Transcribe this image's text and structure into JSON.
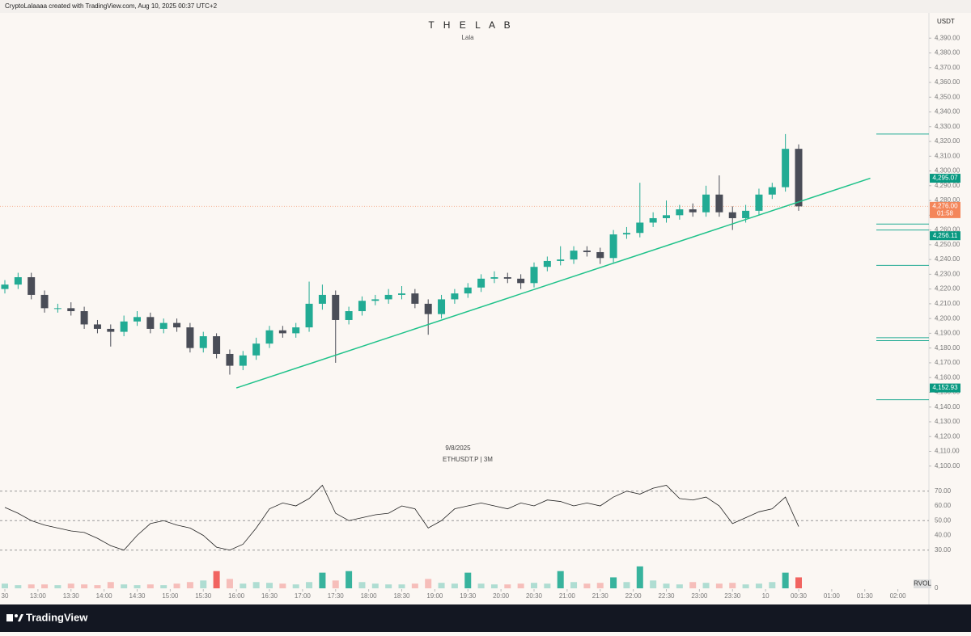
{
  "header": "CryptoLalaaaa created with TradingView.com, Aug 10, 2025 00:37 UTC+2",
  "footer": "TradingView",
  "chart_data": {
    "type": "candlestick",
    "title": "T H E  L A B",
    "subtitle": "Lala",
    "date": "9/8/2025",
    "symbol": "ETHUSDT.P | 3M",
    "currency": "USDT",
    "x": [
      "12:30",
      "12:42",
      "12:54",
      "13:06",
      "13:18",
      "13:30",
      "13:42",
      "13:54",
      "14:06",
      "14:18",
      "14:30",
      "14:42",
      "14:54",
      "15:06",
      "15:18",
      "15:30",
      "15:42",
      "15:54",
      "16:06",
      "16:18",
      "16:30",
      "16:42",
      "16:54",
      "17:06",
      "17:18",
      "17:30",
      "17:42",
      "17:54",
      "18:06",
      "18:18",
      "18:30",
      "18:42",
      "18:54",
      "19:06",
      "19:18",
      "19:30",
      "19:42",
      "19:54",
      "20:06",
      "20:18",
      "20:30",
      "20:42",
      "20:54",
      "21:06",
      "21:18",
      "21:30",
      "21:42",
      "21:54",
      "22:06",
      "22:18",
      "22:30",
      "22:42",
      "22:54",
      "23:06",
      "23:18",
      "23:30",
      "23:42",
      "23:54",
      "00:06",
      "00:18",
      "00:30"
    ],
    "open": [
      4220,
      4223,
      4228,
      4216,
      4207,
      4207,
      4205,
      4196,
      4193,
      4191,
      4198,
      4201,
      4193,
      4197,
      4194,
      4180,
      4188,
      4176,
      4168,
      4175,
      4183,
      4192,
      4190,
      4194,
      4210,
      4216,
      4199,
      4205,
      4212,
      4213,
      4216,
      4217,
      4210,
      4203,
      4213,
      4217,
      4221,
      4227,
      4228,
      4227,
      4224,
      4235,
      4239,
      4240,
      4246,
      4245,
      4241,
      4257,
      4258,
      4265,
      4268,
      4270,
      4274,
      4272,
      4284,
      4272,
      4268,
      4273,
      4284,
      4289,
      4315
    ],
    "high": [
      4226,
      4231,
      4231,
      4219,
      4210,
      4211,
      4208,
      4199,
      4196,
      4202,
      4205,
      4204,
      4200,
      4200,
      4197,
      4191,
      4190,
      4179,
      4178,
      4187,
      4195,
      4195,
      4197,
      4225,
      4223,
      4219,
      4208,
      4215,
      4216,
      4220,
      4222,
      4220,
      4213,
      4216,
      4220,
      4224,
      4230,
      4232,
      4231,
      4230,
      4238,
      4242,
      4249,
      4249,
      4249,
      4248,
      4260,
      4262,
      4292,
      4272,
      4280,
      4277,
      4278,
      4290,
      4297,
      4276,
      4277,
      4288,
      4292,
      4325,
      4318
    ],
    "low": [
      4217,
      4220,
      4213,
      4204,
      4204,
      4202,
      4193,
      4190,
      4181,
      4188,
      4195,
      4190,
      4190,
      4191,
      4177,
      4177,
      4173,
      4162,
      4165,
      4172,
      4180,
      4187,
      4187,
      4191,
      4206,
      4170,
      4196,
      4202,
      4209,
      4210,
      4213,
      4207,
      4189,
      4200,
      4210,
      4214,
      4218,
      4224,
      4224,
      4220,
      4221,
      4232,
      4236,
      4237,
      4242,
      4237,
      4238,
      4254,
      4255,
      4262,
      4265,
      4267,
      4269,
      4269,
      4269,
      4260,
      4265,
      4270,
      4281,
      4286,
      4273
    ],
    "close": [
      4223,
      4228,
      4216,
      4207,
      4207,
      4205,
      4196,
      4193,
      4191,
      4198,
      4201,
      4193,
      4197,
      4194,
      4180,
      4188,
      4176,
      4168,
      4175,
      4183,
      4192,
      4190,
      4194,
      4210,
      4216,
      4199,
      4205,
      4212,
      4213,
      4216,
      4217,
      4210,
      4203,
      4213,
      4217,
      4221,
      4227,
      4228,
      4227,
      4224,
      4235,
      4239,
      4240,
      4246,
      4245,
      4241,
      4257,
      4258,
      4265,
      4268,
      4270,
      4274,
      4272,
      4284,
      4272,
      4268,
      4273,
      4284,
      4289,
      4315,
      4276
    ],
    "up_color": "#22ab94",
    "down_color": "#4a4d57",
    "ylim": [
      4090,
      4406
    ],
    "yticks": [
      {
        "value": 4100,
        "label": "4,100.00"
      },
      {
        "value": 4110,
        "label": "4,110.00"
      },
      {
        "value": 4120,
        "label": "4,120.00"
      },
      {
        "value": 4130,
        "label": "4,130.00"
      },
      {
        "value": 4140,
        "label": "4,140.00"
      },
      {
        "value": 4150,
        "label": "4,150.00"
      },
      {
        "value": 4160,
        "label": "4,160.00"
      },
      {
        "value": 4170,
        "label": "4,170.00"
      },
      {
        "value": 4180,
        "label": "4,180.00"
      },
      {
        "value": 4190,
        "label": "4,190.00"
      },
      {
        "value": 4200,
        "label": "4,200.00"
      },
      {
        "value": 4210,
        "label": "4,210.00"
      },
      {
        "value": 4220,
        "label": "4,220.00"
      },
      {
        "value": 4230,
        "label": "4,230.00"
      },
      {
        "value": 4240,
        "label": "4,240.00"
      },
      {
        "value": 4250,
        "label": "4,250.00"
      },
      {
        "value": 4260,
        "label": "4,260.00"
      },
      {
        "value": 4270,
        "label": "4,270.00"
      },
      {
        "value": 4280,
        "label": "4,280.00"
      },
      {
        "value": 4290,
        "label": "4,290.00"
      },
      {
        "value": 4300,
        "label": "4,300.00"
      },
      {
        "value": 4310,
        "label": "4,310.00"
      },
      {
        "value": 4320,
        "label": "4,320.00"
      },
      {
        "value": 4330,
        "label": "4,330.00"
      },
      {
        "value": 4340,
        "label": "4,340.00"
      },
      {
        "value": 4350,
        "label": "4,350.00"
      },
      {
        "value": 4360,
        "label": "4,360.00"
      },
      {
        "value": 4370,
        "label": "4,370.00"
      },
      {
        "value": 4380,
        "label": "4,380.00"
      },
      {
        "value": 4390,
        "label": "4,390.00"
      }
    ],
    "xticks": [
      {
        "value": "12:30",
        "label": "30"
      },
      "13:00",
      "13:30",
      "14:00",
      "14:30",
      "15:00",
      "15:30",
      "16:00",
      "16:30",
      "17:00",
      "17:30",
      "18:00",
      "18:30",
      "19:00",
      "19:30",
      "20:00",
      "20:30",
      "21:00",
      "21:30",
      "22:00",
      "22:30",
      "23:00",
      "23:30",
      {
        "value": "00:00",
        "label": "10"
      },
      "00:30",
      "01:00",
      "01:30",
      "02:00"
    ],
    "trendline": {
      "x": [
        "16:00",
        "01:35"
      ],
      "y": [
        4152.93,
        4295.07
      ],
      "color": "#1fc28a"
    },
    "levels": {
      "values": [
        4325,
        4264,
        4260,
        4236,
        4187,
        4185,
        4145
      ],
      "color": "#22ab94"
    },
    "current_price": {
      "value": 4276,
      "label": "4,276.00",
      "countdown": "01:58",
      "color": "#f4865a"
    },
    "price_labels": [
      {
        "value": 4295.07,
        "label": "4,295.07"
      },
      {
        "value": 4256.11,
        "label": "4,256.11"
      },
      {
        "value": 4152.93,
        "label": "4,152.93"
      }
    ],
    "price_label_color": "#089981",
    "rsi": {
      "values": [
        59,
        55,
        50,
        47,
        45,
        43,
        42,
        38,
        33,
        30,
        40,
        48,
        50,
        47,
        45,
        40,
        32,
        30,
        34,
        45,
        58,
        62,
        60,
        65,
        74,
        55,
        50,
        52,
        54,
        55,
        60,
        58,
        45,
        50,
        58,
        60,
        62,
        60,
        58,
        62,
        60,
        64,
        63,
        60,
        62,
        60,
        66,
        70,
        68,
        72,
        74,
        65,
        64,
        66,
        60,
        48,
        52,
        56,
        58,
        66,
        46
      ],
      "color": "#222222",
      "ylim": [
        20,
        77
      ],
      "yticks": [
        {
          "value": 30,
          "label": "30.00"
        },
        {
          "value": 40,
          "label": "40.00"
        },
        {
          "value": 50,
          "label": "50.00"
        },
        {
          "value": 60,
          "label": "60.00"
        },
        {
          "value": 70,
          "label": "70.00"
        }
      ],
      "bands": [
        70,
        50,
        30
      ]
    },
    "volume": {
      "name": "RVOL",
      "values": [
        6,
        4,
        5,
        5,
        4,
        6,
        5,
        4,
        8,
        5,
        4,
        5,
        4,
        6,
        8,
        10,
        22,
        12,
        6,
        8,
        7,
        6,
        5,
        8,
        20,
        10,
        22,
        8,
        6,
        5,
        5,
        6,
        12,
        7,
        6,
        20,
        6,
        5,
        5,
        6,
        7,
        6,
        22,
        8,
        6,
        7,
        14,
        8,
        28,
        10,
        6,
        5,
        8,
        7,
        6,
        7,
        5,
        6,
        8,
        20,
        14
      ],
      "ylim": [
        0,
        32
      ],
      "yticks": [
        0
      ]
    }
  }
}
